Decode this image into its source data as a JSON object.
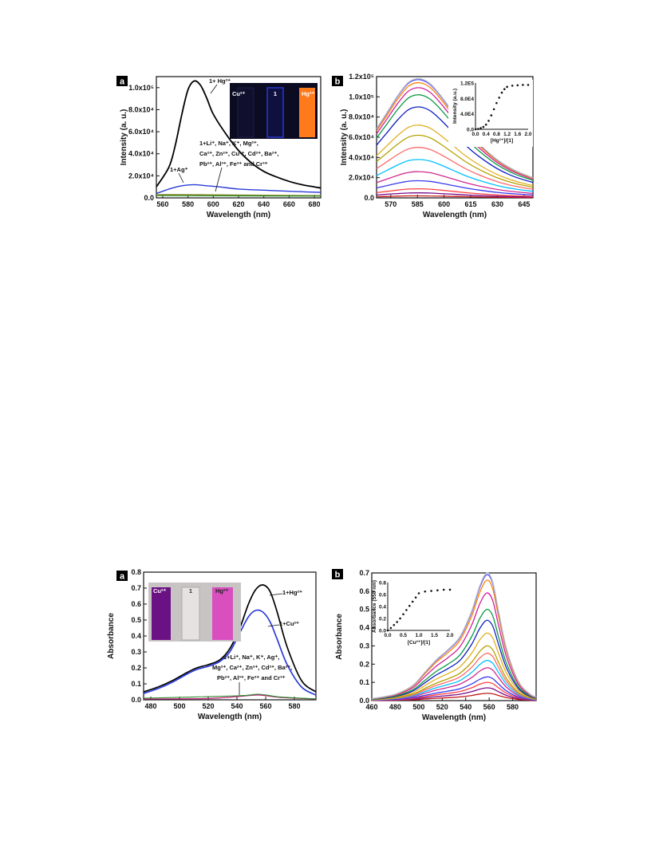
{
  "colors": {
    "ink": "#111111",
    "hg": "#000000",
    "ag": "#2a3cd8",
    "cu": "#2a3cd8",
    "others": "#8a8a2a",
    "baseline_magenta": "#c0207a",
    "photo_dark": "#0b0b22",
    "photo_orange": "#ff7a1a",
    "photo_purple": "#6a1283",
    "photo_pink": "#d94fbf",
    "titration": [
      "#c01818",
      "#7a0a8a",
      "#ff4040",
      "#3a3af0",
      "#d02a90",
      "#00c0ff",
      "#ff6a6a",
      "#b8a000",
      "#e0b020",
      "#1020c0",
      "#0a9a40",
      "#d0209a",
      "#ff8000",
      "#5050ff",
      "#c0c0c0"
    ]
  },
  "figures": [
    {
      "label": "a",
      "chart_data": {
        "type": "line",
        "xlabel": "Wavelength (nm)",
        "ylabel": "Intensity (a. u.)",
        "xlim": [
          555,
          685
        ],
        "ylim": [
          0,
          1.1
        ],
        "x_ticks": [
          "560",
          "580",
          "600",
          "620",
          "640",
          "660",
          "680"
        ],
        "y_ticks": [
          "0.0",
          "2.0x10⁴",
          "4.0x10⁴",
          "6.0x10⁴",
          "8.0x10⁴",
          "1.0x10⁵"
        ],
        "series": [
          {
            "name": "1+ Hg²⁺",
            "x": [
              555,
              565,
              570,
              575,
              580,
              585,
              590,
              595,
              600,
              610,
              620,
              630,
              640,
              650,
              660,
              670,
              680,
              685
            ],
            "y": [
              0.1,
              0.28,
              0.48,
              0.75,
              0.98,
              1.06,
              1.02,
              0.9,
              0.76,
              0.58,
              0.43,
              0.32,
              0.24,
              0.19,
              0.15,
              0.12,
              0.1,
              0.09
            ]
          },
          {
            "name": "1+Ag⁺",
            "x": [
              555,
              565,
              575,
              585,
              595,
              605,
              620,
              640,
              660,
              685
            ],
            "y": [
              0.04,
              0.08,
              0.11,
              0.12,
              0.11,
              0.1,
              0.08,
              0.07,
              0.06,
              0.05
            ]
          },
          {
            "name": "others",
            "x": [
              555,
              585,
              620,
              685
            ],
            "y": [
              0.03,
              0.03,
              0.025,
              0.02
            ]
          }
        ],
        "annotations": [
          "1+ Hg²⁺",
          "1+Ag⁺",
          "1+Li⁺, Na⁺, K⁺, Mg²⁺,",
          "Ca²⁺, Zn²⁺, Cu²⁺, Cd²⁺, Ba²⁺,",
          "Pb²⁺, Al³⁺, Fe³⁺ and Cr³⁺"
        ],
        "photo_labels": [
          "Cu²⁺",
          "1",
          "Hg²⁺"
        ]
      }
    },
    {
      "label": "b",
      "chart_data": {
        "type": "line",
        "xlabel": "Wavelength (nm)",
        "ylabel": "Intensity (a. u.)",
        "xlim": [
          562,
          650
        ],
        "ylim": [
          0,
          1.2
        ],
        "x_ticks": [
          "570",
          "585",
          "600",
          "615",
          "630",
          "645"
        ],
        "y_ticks": [
          "0.0",
          "2.0x10⁴",
          "4.0x10⁴",
          "6.0x10⁴",
          "8.0x10⁴",
          "1.0x10⁵",
          "1.2x10⁵"
        ],
        "peak_x": 586,
        "peak_values": [
          0.02,
          0.05,
          0.09,
          0.17,
          0.26,
          0.38,
          0.5,
          0.62,
          0.72,
          0.9,
          1.02,
          1.09,
          1.14,
          1.17,
          1.18
        ],
        "inset": {
          "type": "scatter",
          "xlabel": "[Hg²⁺]/[1]",
          "ylabel": "Intensity (a.u.)",
          "x_ticks": [
            "0.0",
            "0.4",
            "0.8",
            "1.2",
            "1.6",
            "2.0"
          ],
          "y_ticks": [
            "0.0",
            "4.0E4",
            "8.0E4",
            "1.2E5"
          ],
          "xlim": [
            0,
            2.0
          ],
          "ylim": [
            0,
            1.2
          ],
          "x": [
            0.0,
            0.1,
            0.2,
            0.3,
            0.4,
            0.5,
            0.6,
            0.7,
            0.8,
            0.9,
            1.0,
            1.1,
            1.2,
            1.4,
            1.6,
            1.8,
            2.0
          ],
          "y": [
            0.0,
            0.01,
            0.03,
            0.06,
            0.12,
            0.22,
            0.36,
            0.52,
            0.68,
            0.82,
            0.95,
            1.04,
            1.1,
            1.13,
            1.14,
            1.15,
            1.15
          ]
        }
      }
    },
    {
      "label": "a",
      "chart_data": {
        "type": "line",
        "xlabel": "Wavelength (nm)",
        "ylabel": "Absorbance",
        "xlim": [
          475,
          595
        ],
        "ylim": [
          0,
          0.8
        ],
        "x_ticks": [
          "480",
          "500",
          "520",
          "540",
          "560",
          "580"
        ],
        "y_ticks": [
          "0.0",
          "0.1",
          "0.2",
          "0.3",
          "0.4",
          "0.5",
          "0.6",
          "0.7",
          "0.8"
        ],
        "series": [
          {
            "name": "1+Hg²⁺",
            "x": [
              475,
              485,
              495,
              505,
              512,
              520,
              528,
              535,
              542,
              548,
              553,
              558,
              563,
              568,
              575,
              585,
              595
            ],
            "y": [
              0.05,
              0.08,
              0.12,
              0.17,
              0.2,
              0.22,
              0.25,
              0.32,
              0.45,
              0.6,
              0.69,
              0.72,
              0.68,
              0.55,
              0.33,
              0.12,
              0.05
            ]
          },
          {
            "name": "1+Cu²⁺",
            "x": [
              475,
              485,
              495,
              505,
              512,
              520,
              528,
              535,
              542,
              548,
              553,
              558,
              563,
              568,
              575,
              585,
              595
            ],
            "y": [
              0.04,
              0.07,
              0.11,
              0.16,
              0.19,
              0.21,
              0.24,
              0.3,
              0.42,
              0.52,
              0.56,
              0.55,
              0.49,
              0.38,
              0.22,
              0.08,
              0.03
            ]
          },
          {
            "name": "others",
            "x": [
              475,
              520,
              540,
              555,
              570,
              595
            ],
            "y": [
              0.005,
              0.008,
              0.02,
              0.03,
              0.015,
              0.005
            ]
          }
        ],
        "annotations": [
          "1+Hg²⁺",
          "1+Cu²⁺",
          "1+Li⁺, Na⁺, K⁺, Ag⁺,",
          "Mg²⁺, Ca²⁺, Zn²⁺, Cd²⁺, Ba²⁺,",
          "Pb²⁺, Al³⁺, Fe³⁺ and Cr³⁺"
        ],
        "photo_labels": [
          "Cu²⁺",
          "1",
          "Hg²⁺"
        ]
      }
    },
    {
      "label": "b",
      "chart_data": {
        "type": "line",
        "xlabel": "Wavelength (nm)",
        "ylabel": "Absorbance",
        "xlim": [
          460,
          600
        ],
        "ylim": [
          0,
          0.7
        ],
        "x_ticks": [
          "460",
          "480",
          "500",
          "520",
          "540",
          "560",
          "580"
        ],
        "y_ticks": [
          "0.0",
          "0.1",
          "0.2",
          "0.3",
          "0.4",
          "0.5",
          "0.6",
          "0.7"
        ],
        "peak_x": 558,
        "peak_values": [
          0.04,
          0.07,
          0.1,
          0.13,
          0.18,
          0.22,
          0.26,
          0.3,
          0.37,
          0.44,
          0.5,
          0.59,
          0.66,
          0.69,
          0.7
        ],
        "inset": {
          "type": "scatter",
          "xlabel": "[Cu²⁺]/[1]",
          "ylabel": "Absorbance (558 nm)",
          "x_ticks": [
            "0.0",
            "0.5",
            "1.0",
            "1.5",
            "2.0"
          ],
          "y_ticks": [
            "0.0",
            "0.2",
            "0.4",
            "0.6",
            "0.8"
          ],
          "xlim": [
            0,
            2.0
          ],
          "ylim": [
            0,
            0.8
          ],
          "x": [
            0.0,
            0.1,
            0.2,
            0.3,
            0.4,
            0.5,
            0.6,
            0.7,
            0.8,
            0.9,
            1.0,
            1.2,
            1.4,
            1.6,
            1.8,
            2.0
          ],
          "y": [
            0.0,
            0.04,
            0.09,
            0.14,
            0.2,
            0.27,
            0.34,
            0.41,
            0.48,
            0.55,
            0.62,
            0.65,
            0.66,
            0.67,
            0.68,
            0.68
          ]
        }
      }
    }
  ]
}
